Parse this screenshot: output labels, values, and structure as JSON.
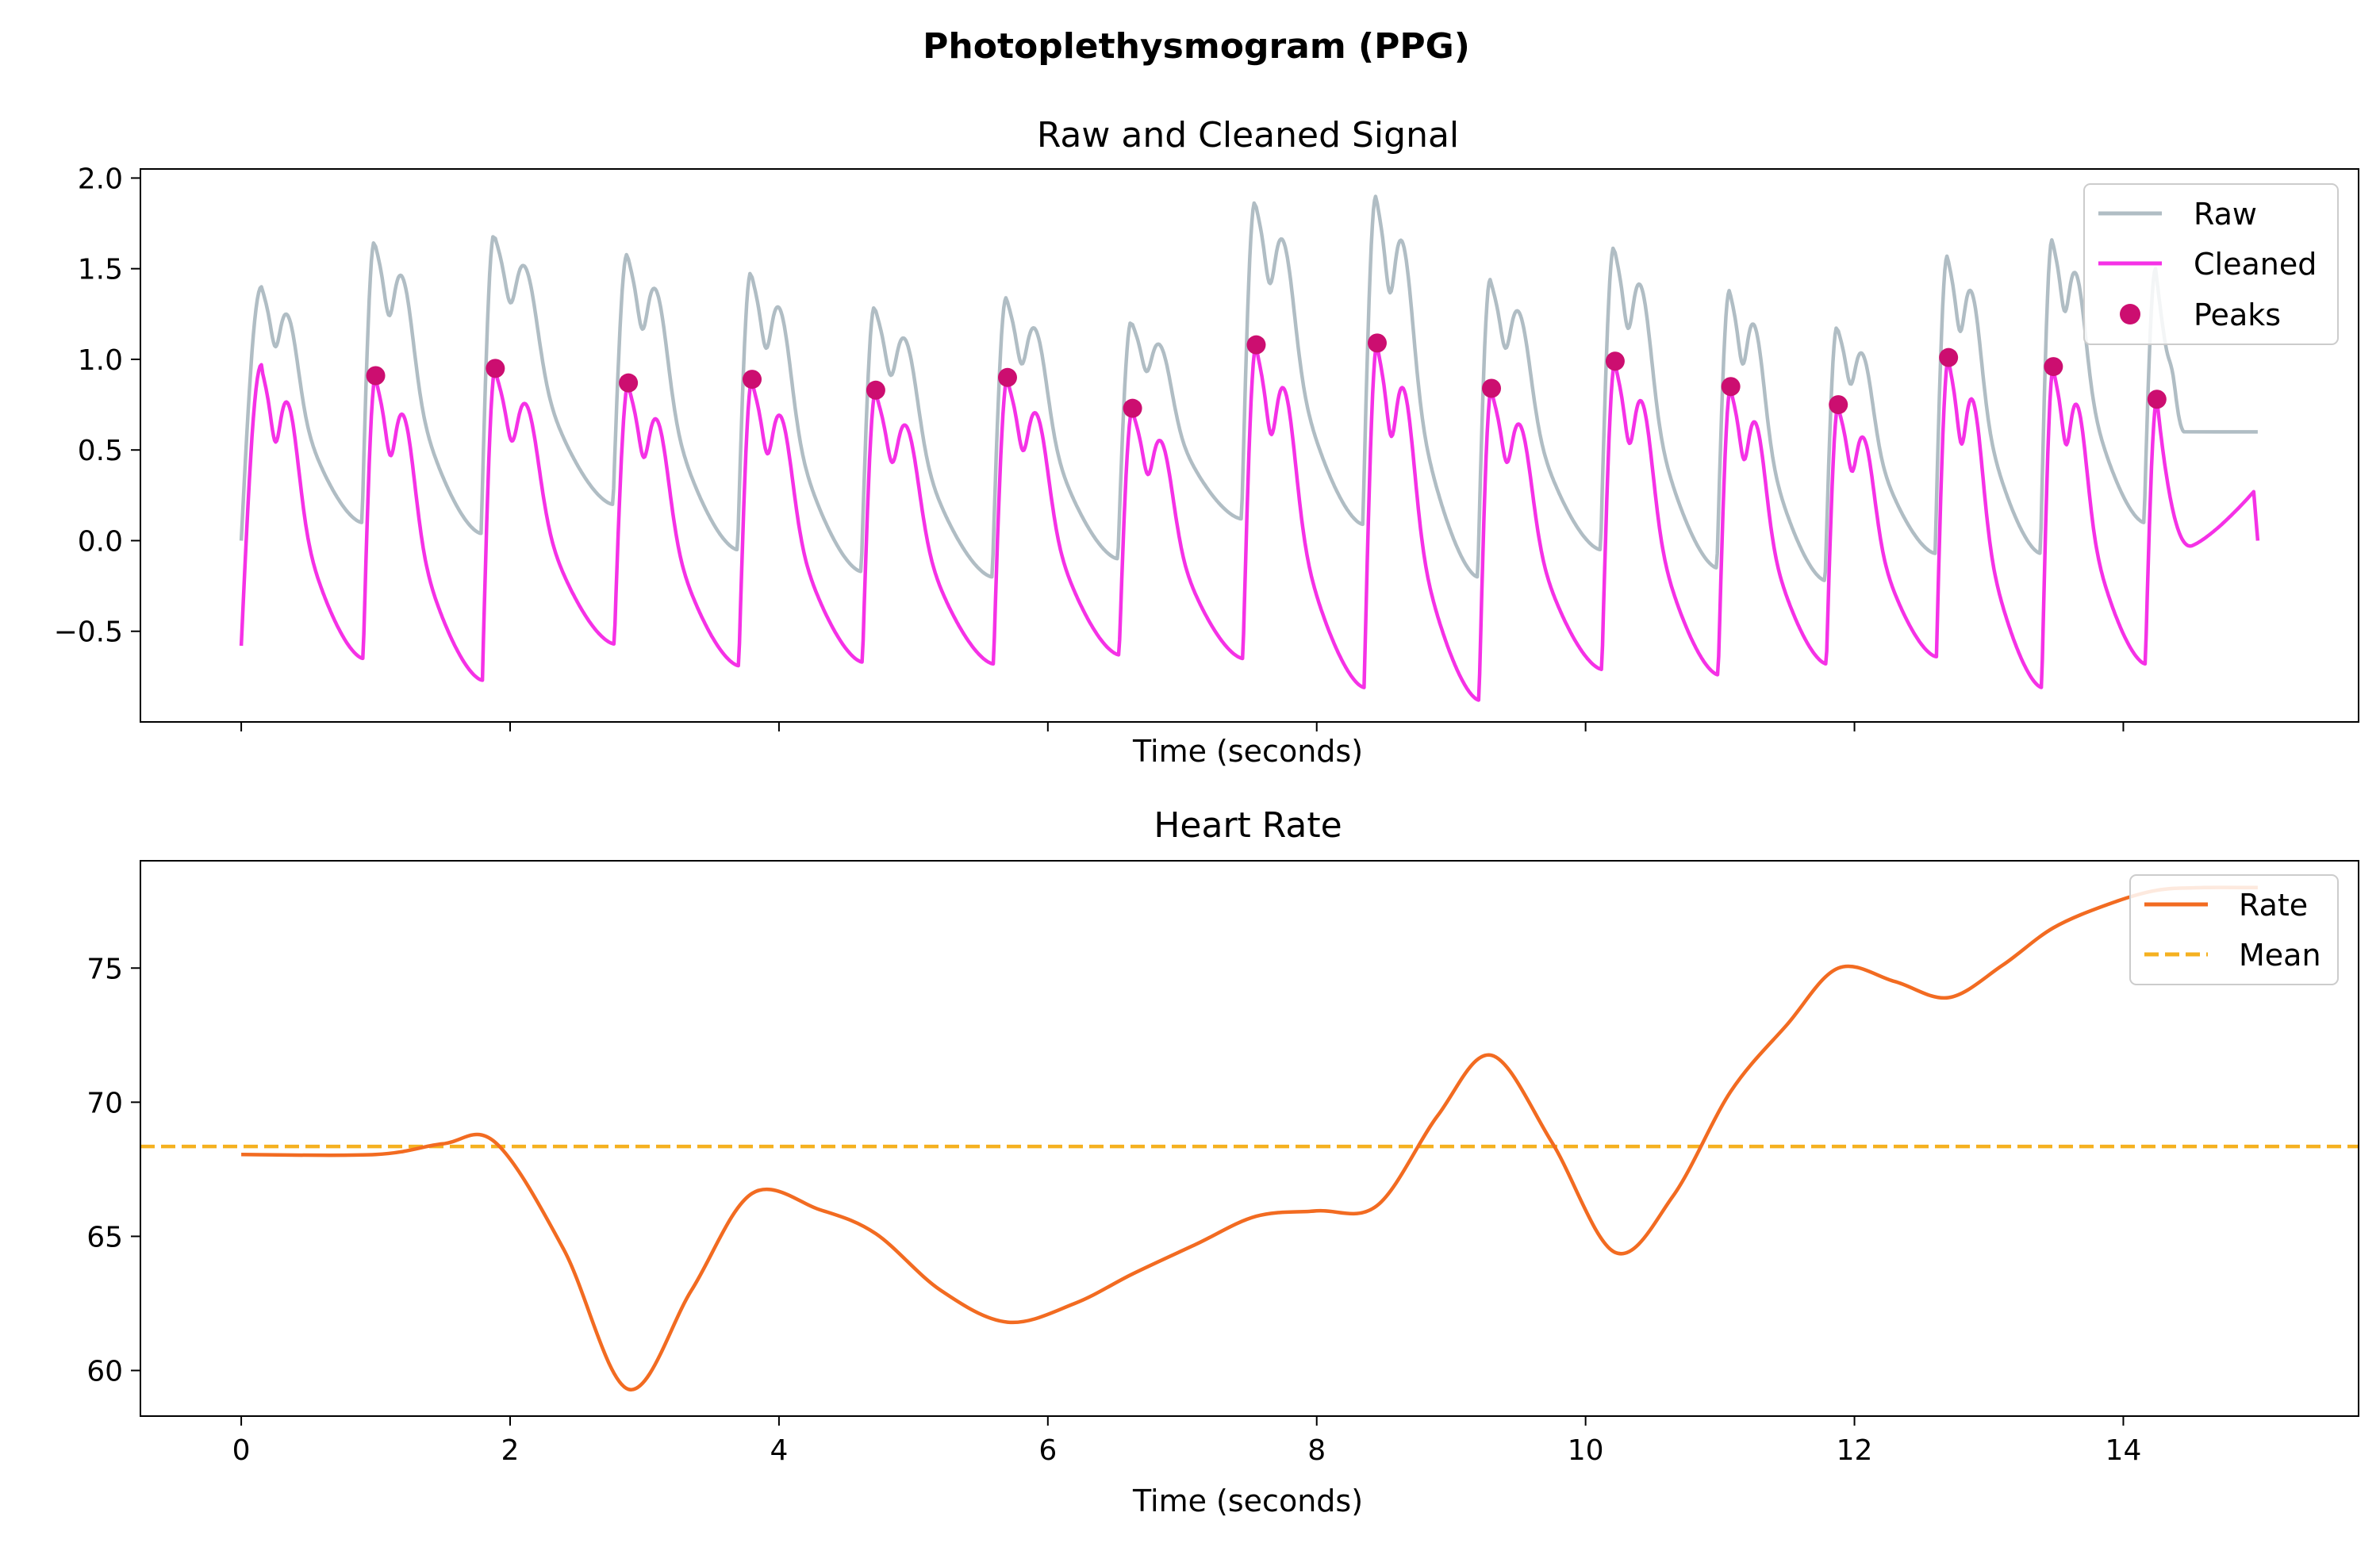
{
  "figure": {
    "title": "Photoplethysmogram (PPG)"
  },
  "chart_data": [
    {
      "type": "line",
      "title": "Raw and Cleaned Signal",
      "xlabel": "Time (seconds)",
      "ylabel": "",
      "xlim": [
        -0.75,
        15.75
      ],
      "ylim": [
        -1.0,
        2.05
      ],
      "xticks": [
        0,
        2,
        4,
        6,
        8,
        10,
        12,
        14
      ],
      "show_xtick_labels": false,
      "yticks": [
        -0.5,
        0.0,
        0.5,
        1.0,
        1.5,
        2.0
      ],
      "ytick_labels": [
        "−0.5",
        "0.0",
        "0.5",
        "1.0",
        "1.5",
        "2.0"
      ],
      "grid": false,
      "legend": {
        "position": "top-right",
        "entries": [
          "Raw",
          "Cleaned",
          "Peaks"
        ]
      },
      "peaks": {
        "x": [
          1.0,
          1.89,
          2.88,
          3.8,
          4.72,
          5.7,
          6.63,
          7.55,
          8.45,
          9.3,
          10.22,
          11.08,
          11.88,
          12.7,
          13.48,
          14.25
        ],
        "y": [
          0.91,
          0.95,
          0.87,
          0.89,
          0.83,
          0.9,
          0.73,
          1.08,
          1.09,
          0.84,
          0.99,
          0.85,
          0.75,
          1.01,
          0.96,
          0.78
        ]
      },
      "raw": {
        "peak_y": [
          1.65,
          1.69,
          1.58,
          1.48,
          1.29,
          1.34,
          1.21,
          1.87,
          1.9,
          1.44,
          1.62,
          1.38,
          1.18,
          1.57,
          1.66,
          1.5
        ],
        "trough_y": [
          0.1,
          0.04,
          0.2,
          -0.05,
          -0.17,
          -0.2,
          -0.1,
          0.12,
          0.09,
          -0.2,
          -0.05,
          -0.15,
          -0.22,
          -0.07,
          -0.07,
          0.1
        ],
        "first": {
          "start_y": 0.0,
          "peak_x": 0.15,
          "peak_y": 1.4
        },
        "tail": {
          "from_x": 14.45,
          "to_x": 15.0,
          "y": 0.6
        }
      },
      "cleaned": {
        "trough_y": [
          -0.63,
          -0.75,
          -0.55,
          -0.67,
          -0.65,
          -0.66,
          -0.61,
          -0.63,
          -0.79,
          -0.86,
          -0.69,
          -0.72,
          -0.66,
          -0.62,
          -0.79,
          -0.66
        ],
        "first": {
          "start_y": -0.58,
          "peak_x": 0.15,
          "peak_y": 0.97
        },
        "tail": {
          "dip_x": 14.5,
          "dip_y": -0.03,
          "rise_x": 14.97,
          "rise_y": 0.27,
          "end_x": 15.0,
          "end_y": 0.0
        }
      },
      "series": [
        {
          "name": "Raw",
          "color": "#b0bdc4"
        },
        {
          "name": "Cleaned",
          "color": "#f531e6"
        },
        {
          "name": "Peaks",
          "color": "#cc0e70"
        }
      ]
    },
    {
      "type": "line",
      "title": "Heart Rate",
      "xlabel": "Time (seconds)",
      "ylabel": "",
      "xlim": [
        -0.75,
        15.75
      ],
      "ylim": [
        58.3,
        79.0
      ],
      "xticks": [
        0,
        2,
        4,
        6,
        8,
        10,
        12,
        14
      ],
      "xtick_labels": [
        "0",
        "2",
        "4",
        "6",
        "8",
        "10",
        "12",
        "14"
      ],
      "yticks": [
        60,
        65,
        70,
        75
      ],
      "ytick_labels": [
        "60",
        "65",
        "70",
        "75"
      ],
      "grid": false,
      "legend": {
        "position": "top-right",
        "entries": [
          "Rate",
          "Mean"
        ]
      },
      "series": [
        {
          "name": "Rate",
          "color": "#f26b21",
          "x": [
            0,
            1.0,
            1.5,
            1.89,
            2.4,
            2.88,
            3.35,
            3.8,
            4.3,
            4.72,
            5.2,
            5.7,
            6.2,
            6.63,
            7.1,
            7.55,
            8.0,
            8.45,
            8.9,
            9.3,
            9.75,
            10.22,
            10.65,
            11.08,
            11.5,
            11.88,
            12.3,
            12.7,
            13.1,
            13.48,
            13.9,
            14.25,
            14.6,
            15.0
          ],
          "y": [
            68.05,
            68.05,
            68.45,
            68.5,
            64.5,
            59.3,
            63.0,
            66.6,
            66.0,
            65.1,
            63.0,
            61.8,
            62.5,
            63.6,
            64.7,
            65.75,
            65.95,
            66.15,
            69.5,
            71.75,
            68.5,
            64.4,
            66.5,
            70.4,
            72.9,
            75.0,
            74.5,
            73.9,
            75.1,
            76.5,
            77.4,
            77.9,
            78.0,
            78.0
          ]
        },
        {
          "name": "Mean",
          "color": "#f5b120",
          "style": "dashed",
          "y": 68.35
        }
      ]
    }
  ]
}
